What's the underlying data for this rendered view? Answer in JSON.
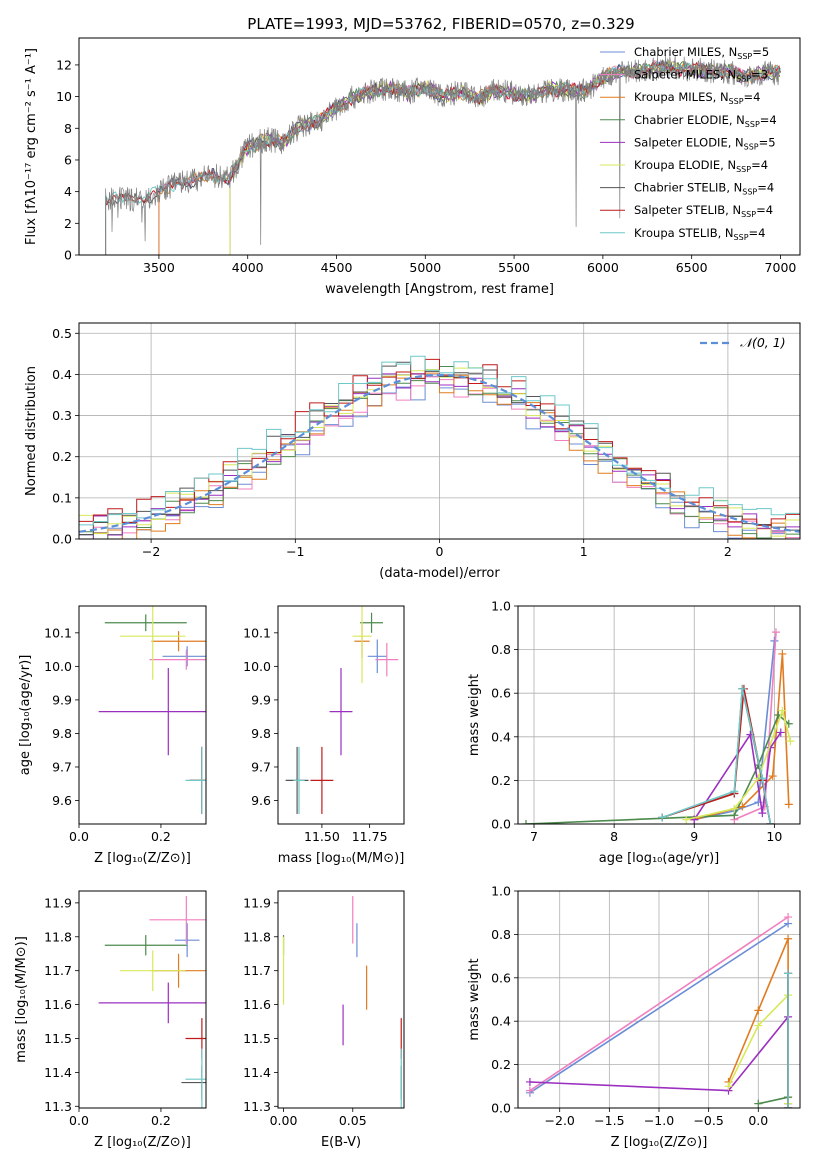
{
  "figure": {
    "title": "PLATE=1993, MJD=53762, FIBERID=0570, z=0.329"
  },
  "legend_entries": [
    {
      "label": "Chabrier MILES, N",
      "sub": "SSP",
      "tail": "=5",
      "color": "#6b8dd6"
    },
    {
      "label": "Salpeter MILES, N",
      "sub": "SSP",
      "tail": "=3",
      "color": "#f07fbf"
    },
    {
      "label": "Kroupa MILES, N",
      "sub": "SSP",
      "tail": "=4",
      "color": "#e07b20"
    },
    {
      "label": "Chabrier ELODIE, N",
      "sub": "SSP",
      "tail": "=4",
      "color": "#4d8a4d"
    },
    {
      "label": "Salpeter ELODIE, N",
      "sub": "SSP",
      "tail": "=5",
      "color": "#9b30c0"
    },
    {
      "label": "Kroupa ELODIE, N",
      "sub": "SSP",
      "tail": "=4",
      "color": "#d8e85a"
    },
    {
      "label": "Chabrier STELIB, N",
      "sub": "SSP",
      "tail": "=4",
      "color": "#555555"
    },
    {
      "label": "Salpeter STELIB, N",
      "sub": "SSP",
      "tail": "=4",
      "color": "#c01a1a"
    },
    {
      "label": "Kroupa STELIB, N",
      "sub": "SSP",
      "tail": "=4",
      "color": "#6ec8c8"
    }
  ],
  "chart_data": [
    {
      "id": "spectrum",
      "type": "line",
      "xlabel": "wavelength [Angstrom, rest frame]",
      "ylabel": "Flux [fλ10⁻¹⁷ erg cm⁻² s⁻¹ A⁻¹]",
      "xlim": [
        3050,
        7110
      ],
      "ylim": [
        0,
        13.7
      ],
      "xticks": [
        3500,
        4000,
        4500,
        5000,
        5500,
        6000,
        6500,
        7000
      ],
      "yticks": [
        0,
        2,
        4,
        6,
        8,
        10,
        12
      ],
      "envelope_x": [
        3200,
        3300,
        3400,
        3500,
        3600,
        3700,
        3800,
        3900,
        4000,
        4100,
        4200,
        4300,
        4400,
        4500,
        4600,
        4700,
        4800,
        4900,
        5000,
        5100,
        5200,
        5300,
        5400,
        5500,
        5600,
        5700,
        5800,
        5900,
        6000,
        6100,
        6200,
        6300,
        6400,
        6500,
        6600,
        6700,
        6800,
        6900,
        7000
      ],
      "envelope_y": [
        3.5,
        3.5,
        3.6,
        3.9,
        4.6,
        4.7,
        5.0,
        4.9,
        6.8,
        7.3,
        7.1,
        8.2,
        8.4,
        9.3,
        10.0,
        10.3,
        10.6,
        10.2,
        10.6,
        10.0,
        10.3,
        9.9,
        10.4,
        10.2,
        10.0,
        10.5,
        10.4,
        10.3,
        11.2,
        11.6,
        11.6,
        11.8,
        11.8,
        11.7,
        11.6,
        11.6,
        11.3,
        11.5,
        11.5
      ],
      "data_xmin": 3200,
      "data_xmax": 7000,
      "series": [
        {
          "name": "Chabrier MILES",
          "start": 3500
        },
        {
          "name": "Salpeter MILES",
          "start": 3500
        },
        {
          "name": "Kroupa MILES",
          "start": 3500
        },
        {
          "name": "Chabrier ELODIE",
          "start": 3900
        },
        {
          "name": "Salpeter ELODIE",
          "start": 3900
        },
        {
          "name": "Kroupa ELODIE",
          "start": 3900
        },
        {
          "name": "Chabrier STELIB",
          "start": 3200
        },
        {
          "name": "Salpeter STELIB",
          "start": 3200
        },
        {
          "name": "Kroupa STELIB",
          "start": 3200
        }
      ]
    },
    {
      "id": "residuals",
      "type": "step-histogram",
      "xlabel": "(data-model)/error",
      "ylabel": "Normed distribution",
      "xlim": [
        -2.5,
        2.5
      ],
      "ylim": [
        0,
        0.525
      ],
      "xticks": [
        -2,
        -1,
        0,
        1,
        2
      ],
      "yticks": [
        0.0,
        0.1,
        0.2,
        0.3,
        0.4,
        0.5
      ],
      "legend": "𝒩(0, 1)",
      "normal_color": "#5b8fd9",
      "grid": true
    },
    {
      "id": "age_vs_Z",
      "type": "errorbar",
      "xlabel": "Z [log₁₀(Z/Z⊙)]",
      "ylabel": "age  [log₁₀(age/yr)]",
      "xlim": [
        0.0,
        0.31
      ],
      "ylim": [
        9.53,
        10.18
      ],
      "xticks": [
        0.0,
        0.2
      ],
      "yticks": [
        9.6,
        9.7,
        9.8,
        9.9,
        10.0,
        10.1
      ],
      "points": [
        {
          "x": 0.264,
          "y": 10.03,
          "xerr": 0.06,
          "yerr": 0.03,
          "c": "#6b8dd6"
        },
        {
          "x": 0.262,
          "y": 10.02,
          "xerr": 0.09,
          "yerr": 0.03,
          "c": "#f07fbf"
        },
        {
          "x": 0.243,
          "y": 10.075,
          "xerr": 0.066,
          "yerr": 0.03,
          "c": "#e07b20"
        },
        {
          "x": 0.163,
          "y": 10.13,
          "xerr": 0.1,
          "yerr": 0.025,
          "c": "#4d8a4d"
        },
        {
          "x": 0.218,
          "y": 9.865,
          "xerr": 0.17,
          "yerr": 0.13,
          "c": "#9b30c0"
        },
        {
          "x": 0.18,
          "y": 10.09,
          "xerr": 0.08,
          "yerr": 0.13,
          "c": "#d8e85a"
        },
        {
          "x": 0.3,
          "y": 9.66,
          "xerr": 0.03,
          "yerr": 0.1,
          "c": "#555555"
        },
        {
          "x": 0.3,
          "y": 9.66,
          "xerr": 0.03,
          "yerr": 0.1,
          "c": "#c01a1a"
        },
        {
          "x": 0.3,
          "y": 9.66,
          "xerr": 0.04,
          "yerr": 0.1,
          "c": "#6ec8c8"
        }
      ]
    },
    {
      "id": "age_vs_mass",
      "type": "errorbar",
      "xlabel": "mass [log₁₀(M/M⊙)]",
      "ylabel": "",
      "xlim": [
        11.27,
        11.93
      ],
      "ylim": [
        9.53,
        10.18
      ],
      "xticks": [
        11.5,
        11.75
      ],
      "xticklabels": [
        "11.50",
        "11.75"
      ],
      "yticks": [
        9.6,
        9.7,
        9.8,
        9.9,
        10.0,
        10.1
      ],
      "points": [
        {
          "x": 11.79,
          "y": 10.03,
          "xerr": 0.05,
          "yerr": 0.05,
          "c": "#6b8dd6"
        },
        {
          "x": 11.84,
          "y": 10.02,
          "xerr": 0.06,
          "yerr": 0.05,
          "c": "#f07fbf"
        },
        {
          "x": 11.71,
          "y": 10.075,
          "xerr": 0.04,
          "yerr": 0.05,
          "c": "#e07b20"
        },
        {
          "x": 11.76,
          "y": 10.13,
          "xerr": 0.06,
          "yerr": 0.03,
          "c": "#4d8a4d"
        },
        {
          "x": 11.6,
          "y": 9.865,
          "xerr": 0.06,
          "yerr": 0.13,
          "c": "#9b30c0"
        },
        {
          "x": 11.71,
          "y": 10.09,
          "xerr": 0.05,
          "yerr": 0.14,
          "c": "#d8e85a"
        },
        {
          "x": 11.37,
          "y": 9.66,
          "xerr": 0.06,
          "yerr": 0.1,
          "c": "#555555"
        },
        {
          "x": 11.5,
          "y": 9.66,
          "xerr": 0.06,
          "yerr": 0.1,
          "c": "#c01a1a"
        },
        {
          "x": 11.38,
          "y": 9.66,
          "xerr": 0.03,
          "yerr": 0.1,
          "c": "#6ec8c8"
        }
      ]
    },
    {
      "id": "weight_vs_age",
      "type": "line",
      "xlabel": "age  [log₁₀(age/yr)]",
      "ylabel": "mass weight",
      "xlim": [
        6.8,
        10.32
      ],
      "ylim": [
        0,
        1.0
      ],
      "xticks": [
        7,
        8,
        9,
        10
      ],
      "yticks": [
        0.0,
        0.2,
        0.4,
        0.6,
        0.8,
        1.0
      ],
      "grid": true,
      "series": [
        {
          "name": "Chabrier MILES",
          "x": [
            9.0,
            9.5,
            9.8,
            10.0
          ],
          "y": [
            0.02,
            0.06,
            0.1,
            0.84
          ]
        },
        {
          "name": "Salpeter MILES",
          "x": [
            9.5,
            9.88,
            10.02
          ],
          "y": [
            0.02,
            0.08,
            0.88
          ]
        },
        {
          "name": "Kroupa MILES",
          "x": [
            9.0,
            9.6,
            9.98,
            10.1,
            10.18
          ],
          "y": [
            0.02,
            0.08,
            0.22,
            0.78,
            0.09
          ]
        },
        {
          "name": "Chabrier ELODIE",
          "x": [
            6.9,
            9.5,
            9.8,
            10.05,
            10.18
          ],
          "y": [
            0.0,
            0.04,
            0.27,
            0.5,
            0.46
          ]
        },
        {
          "name": "Salpeter ELODIE",
          "x": [
            9.0,
            9.7,
            9.85,
            9.95,
            10.08
          ],
          "y": [
            0.02,
            0.41,
            0.05,
            0.35,
            0.42
          ]
        },
        {
          "name": "Kroupa ELODIE",
          "x": [
            8.9,
            9.5,
            9.8,
            10.1,
            10.2
          ],
          "y": [
            0.02,
            0.07,
            0.21,
            0.52,
            0.38
          ]
        },
        {
          "name": "Chabrier STELIB",
          "x": [
            8.6,
            9.5,
            9.6,
            9.85,
            9.95
          ],
          "y": [
            0.03,
            0.14,
            0.62,
            0.2,
            0.0
          ]
        },
        {
          "name": "Salpeter STELIB",
          "x": [
            8.6,
            9.5,
            9.62,
            9.85,
            9.95
          ],
          "y": [
            0.03,
            0.14,
            0.62,
            0.2,
            0.0
          ]
        },
        {
          "name": "Kroupa STELIB",
          "x": [
            8.6,
            9.5,
            9.6,
            9.85,
            9.95
          ],
          "y": [
            0.03,
            0.15,
            0.62,
            0.21,
            0.0
          ]
        }
      ]
    },
    {
      "id": "mass_vs_Z",
      "type": "errorbar",
      "xlabel": "Z [log₁₀(Z/Z⊙)]",
      "ylabel": "mass [log₁₀(M/M⊙)]",
      "xlim": [
        0.0,
        0.31
      ],
      "ylim": [
        11.295,
        11.935
      ],
      "xticks": [
        0.0,
        0.2
      ],
      "yticks": [
        11.3,
        11.4,
        11.5,
        11.6,
        11.7,
        11.8,
        11.9
      ],
      "points": [
        {
          "x": 0.264,
          "y": 11.79,
          "xerr": 0.03,
          "yerr": 0.05,
          "c": "#6b8dd6"
        },
        {
          "x": 0.262,
          "y": 11.85,
          "xerr": 0.09,
          "yerr": 0.07,
          "c": "#f07fbf"
        },
        {
          "x": 0.243,
          "y": 11.7,
          "xerr": 0.066,
          "yerr": 0.05,
          "c": "#e07b20"
        },
        {
          "x": 0.163,
          "y": 11.775,
          "xerr": 0.1,
          "yerr": 0.03,
          "c": "#4d8a4d"
        },
        {
          "x": 0.218,
          "y": 11.605,
          "xerr": 0.17,
          "yerr": 0.06,
          "c": "#9b30c0"
        },
        {
          "x": 0.18,
          "y": 11.7,
          "xerr": 0.08,
          "yerr": 0.06,
          "c": "#d8e85a"
        },
        {
          "x": 0.3,
          "y": 11.37,
          "xerr": 0.05,
          "yerr": 0.05,
          "c": "#555555"
        },
        {
          "x": 0.3,
          "y": 11.5,
          "xerr": 0.04,
          "yerr": 0.06,
          "c": "#c01a1a"
        },
        {
          "x": 0.3,
          "y": 11.38,
          "xerr": 0.04,
          "yerr": 0.09,
          "c": "#6ec8c8"
        }
      ]
    },
    {
      "id": "mass_vs_ebv",
      "type": "errorbar",
      "xlabel": "E(B-V)",
      "ylabel": "",
      "xlim": [
        -0.004,
        0.087
      ],
      "ylim": [
        11.295,
        11.935
      ],
      "xticks": [
        0.0,
        0.05
      ],
      "xticklabels": [
        "0.00",
        "0.05"
      ],
      "yticks": [
        11.3,
        11.4,
        11.5,
        11.6,
        11.7,
        11.8,
        11.9
      ],
      "points": [
        {
          "x": 0.053,
          "y": 11.79,
          "xerr": 0,
          "yerr": 0.05,
          "c": "#6b8dd6"
        },
        {
          "x": 0.05,
          "y": 11.85,
          "xerr": 0,
          "yerr": 0.07,
          "c": "#f07fbf"
        },
        {
          "x": 0.06,
          "y": 11.65,
          "xerr": 0,
          "yerr": 0.065,
          "c": "#e07b20"
        },
        {
          "x": 0.0,
          "y": 11.775,
          "xerr": 0,
          "yerr": 0.03,
          "c": "#4d8a4d"
        },
        {
          "x": 0.043,
          "y": 11.54,
          "xerr": 0,
          "yerr": 0.06,
          "c": "#9b30c0"
        },
        {
          "x": 0.0,
          "y": 11.7,
          "xerr": 0,
          "yerr": 0.1,
          "c": "#d8e85a"
        },
        {
          "x": 0.085,
          "y": 11.37,
          "xerr": 0,
          "yerr": 0.05,
          "c": "#555555"
        },
        {
          "x": 0.085,
          "y": 11.5,
          "xerr": 0,
          "yerr": 0.06,
          "c": "#c01a1a"
        },
        {
          "x": 0.085,
          "y": 11.38,
          "xerr": 0,
          "yerr": 0.09,
          "c": "#6ec8c8"
        }
      ]
    },
    {
      "id": "weight_vs_Z",
      "type": "line",
      "xlabel": "Z [log₁₀(Z/Z⊙)]",
      "ylabel": "mass weight",
      "xlim": [
        -2.42,
        0.42
      ],
      "ylim": [
        0,
        1.0
      ],
      "xticks": [
        -2.0,
        -1.5,
        -1.0,
        -0.5,
        0.0
      ],
      "xticklabels": [
        "−2.0",
        "−1.5",
        "−1.0",
        "−0.5",
        "0.0"
      ],
      "yticks": [
        0.0,
        0.2,
        0.4,
        0.6,
        0.8,
        1.0
      ],
      "grid": true,
      "series": [
        {
          "name": "Chabrier MILES",
          "x": [
            -2.3,
            0.3
          ],
          "y": [
            0.07,
            0.85
          ]
        },
        {
          "name": "Salpeter MILES",
          "x": [
            -2.3,
            0.3
          ],
          "y": [
            0.08,
            0.88
          ]
        },
        {
          "name": "Kroupa MILES",
          "x": [
            -0.3,
            0.0,
            0.3,
            0.3
          ],
          "y": [
            0.12,
            0.45,
            0.78,
            0.05
          ]
        },
        {
          "name": "Chabrier ELODIE",
          "x": [
            0.0,
            0.3,
            0.3
          ],
          "y": [
            0.02,
            0.05,
            0.62
          ]
        },
        {
          "name": "Salpeter ELODIE",
          "x": [
            -2.3,
            -0.3,
            0.3,
            0.3
          ],
          "y": [
            0.12,
            0.08,
            0.42,
            0.02
          ]
        },
        {
          "name": "Kroupa ELODIE",
          "x": [
            -0.3,
            0.0,
            0.3,
            0.3
          ],
          "y": [
            0.1,
            0.38,
            0.52,
            0.02
          ]
        },
        {
          "name": "Chabrier STELIB",
          "x": [
            0.3,
            0.3
          ],
          "y": [
            0.0,
            0.62
          ]
        },
        {
          "name": "Salpeter STELIB",
          "x": [
            0.3,
            0.3
          ],
          "y": [
            0.0,
            0.62
          ]
        },
        {
          "name": "Kroupa STELIB",
          "x": [
            0.3,
            0.3
          ],
          "y": [
            0.0,
            0.62
          ]
        }
      ]
    }
  ]
}
